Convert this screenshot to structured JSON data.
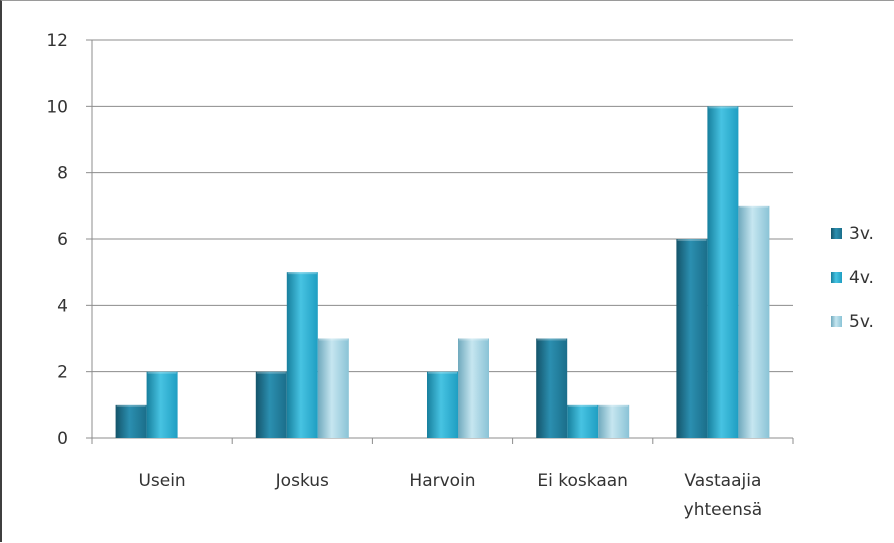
{
  "chart_data": {
    "type": "bar",
    "categories": [
      [
        "Usein"
      ],
      [
        "Joskus"
      ],
      [
        "Harvoin"
      ],
      [
        "Ei koskaan"
      ],
      [
        "Vastaajia",
        "yhteensä"
      ]
    ],
    "series": [
      {
        "name": "3v.",
        "values": [
          1,
          2,
          0,
          3,
          6
        ]
      },
      {
        "name": "4v.",
        "values": [
          2,
          5,
          2,
          1,
          10
        ]
      },
      {
        "name": "5v.",
        "values": [
          0,
          3,
          3,
          1,
          7
        ]
      }
    ],
    "ylim": [
      0,
      12
    ],
    "yticks": [
      0,
      2,
      4,
      6,
      8,
      10,
      12
    ],
    "grid": true,
    "legend_position": "right",
    "colors": {
      "3v.": [
        "#1b6e8a",
        "#2b8fb0",
        "#14546a"
      ],
      "4v.": [
        "#1f9ec2",
        "#47c3e2",
        "#177f9d"
      ],
      "5v.": [
        "#8ac3d6",
        "#c6e6f0",
        "#6fa9bd"
      ]
    }
  }
}
